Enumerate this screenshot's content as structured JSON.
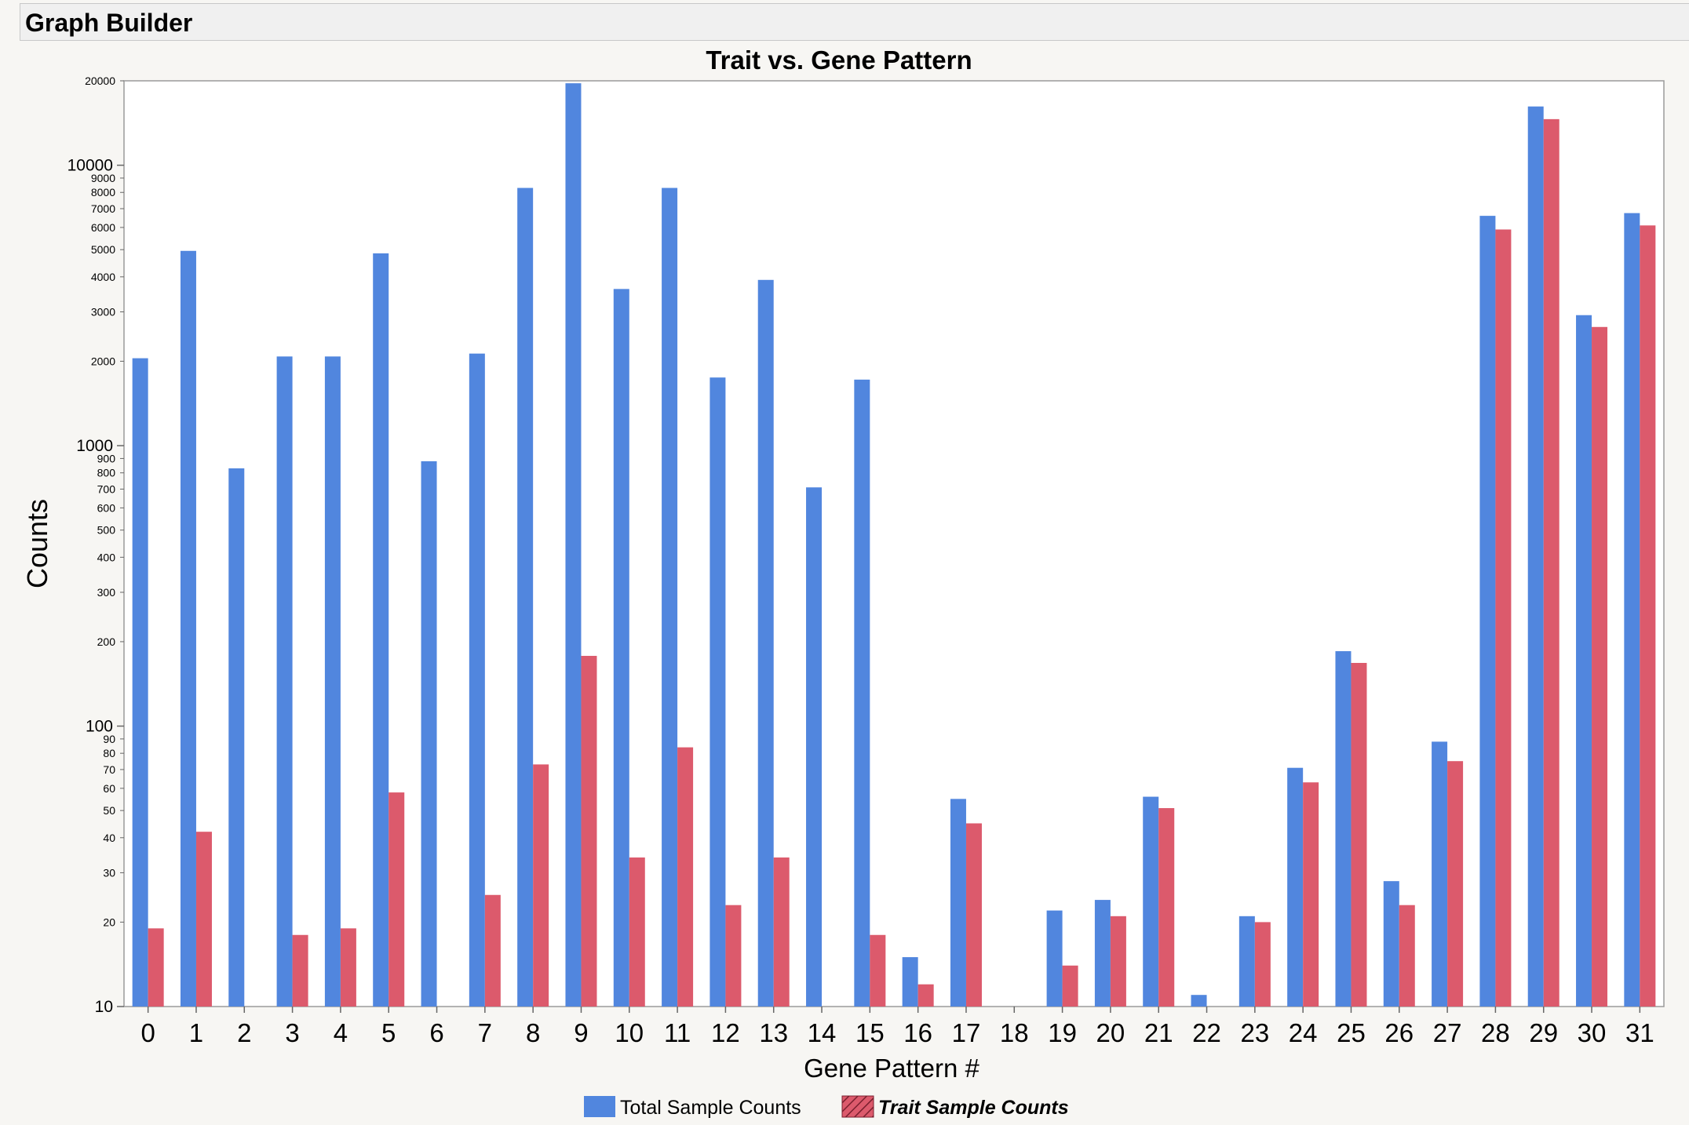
{
  "window": {
    "title": "Graph Builder"
  },
  "chart_data": {
    "type": "bar",
    "title": "Trait vs. Gene Pattern",
    "xlabel": "Gene Pattern #",
    "ylabel": "Counts",
    "yscale": "log",
    "ylim": [
      10,
      20000
    ],
    "grid": false,
    "legend_position": "bottom",
    "y_major_ticks": [
      {
        "value": 10,
        "label": "10"
      },
      {
        "value": 100,
        "label": "100"
      },
      {
        "value": 1000,
        "label": "1000"
      },
      {
        "value": 10000,
        "label": "10000"
      }
    ],
    "y_minor_ticks": [
      {
        "value": 20,
        "label": "20"
      },
      {
        "value": 30,
        "label": "30"
      },
      {
        "value": 40,
        "label": "40"
      },
      {
        "value": 50,
        "label": "50"
      },
      {
        "value": 60,
        "label": "60"
      },
      {
        "value": 70,
        "label": "70"
      },
      {
        "value": 80,
        "label": "80"
      },
      {
        "value": 90,
        "label": "90"
      },
      {
        "value": 200,
        "label": "200"
      },
      {
        "value": 300,
        "label": "300"
      },
      {
        "value": 400,
        "label": "400"
      },
      {
        "value": 500,
        "label": "500"
      },
      {
        "value": 600,
        "label": "600"
      },
      {
        "value": 700,
        "label": "700"
      },
      {
        "value": 800,
        "label": "800"
      },
      {
        "value": 900,
        "label": "900"
      },
      {
        "value": 2000,
        "label": "2000"
      },
      {
        "value": 3000,
        "label": "3000"
      },
      {
        "value": 4000,
        "label": "4000"
      },
      {
        "value": 5000,
        "label": "5000"
      },
      {
        "value": 6000,
        "label": "6000"
      },
      {
        "value": 7000,
        "label": "7000"
      },
      {
        "value": 8000,
        "label": "8000"
      },
      {
        "value": 9000,
        "label": "9000"
      },
      {
        "value": 20000,
        "label": "20000"
      }
    ],
    "categories": [
      "0",
      "1",
      "2",
      "3",
      "4",
      "5",
      "6",
      "7",
      "8",
      "9",
      "10",
      "11",
      "12",
      "13",
      "14",
      "15",
      "16",
      "17",
      "18",
      "19",
      "20",
      "21",
      "22",
      "23",
      "24",
      "25",
      "26",
      "27",
      "28",
      "29",
      "30",
      "31"
    ],
    "series": [
      {
        "name": "Total Sample Counts",
        "color": "#5186de",
        "values": [
          2050,
          4950,
          830,
          2080,
          2080,
          4850,
          880,
          2130,
          8300,
          19600,
          3620,
          8300,
          1750,
          3900,
          710,
          1720,
          15,
          55,
          null,
          22,
          24,
          56,
          11,
          21,
          71,
          185,
          28,
          88,
          6600,
          16200,
          2920,
          6750
        ]
      },
      {
        "name": "Trait Sample Counts",
        "color": "#dc5a6c",
        "values": [
          19,
          42,
          null,
          18,
          19,
          58,
          null,
          25,
          73,
          178,
          34,
          84,
          23,
          34,
          null,
          18,
          12,
          45,
          null,
          14,
          21,
          51,
          null,
          20,
          63,
          168,
          23,
          75,
          5900,
          14600,
          2650,
          6100
        ]
      }
    ]
  }
}
